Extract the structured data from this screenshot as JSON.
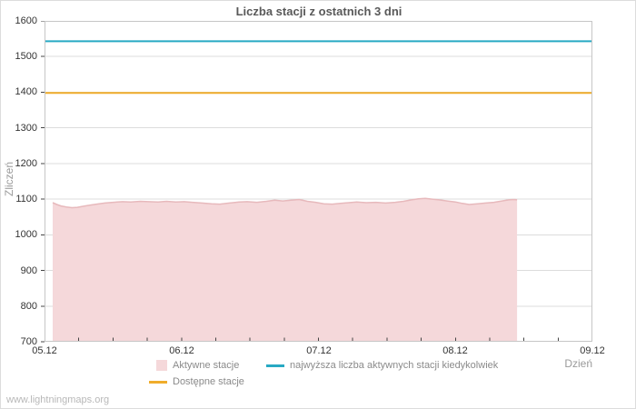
{
  "footer": {
    "watermark": "www.lightningmaps.org"
  },
  "chart_data": {
    "type": "area",
    "title": "Liczba stacji z ostatnich 3 dni",
    "xlabel": "Dzień",
    "ylabel": "Zliczeń",
    "ylim": [
      700,
      1600
    ],
    "y_tick_step": 100,
    "x_tick_labels": [
      "05.12",
      "06.12",
      "07.12",
      "08.12",
      "09.12"
    ],
    "x_domain": [
      0,
      4
    ],
    "minor_tick_interval": 0.25,
    "grid": "horizontal-only",
    "legend_position": "bottom",
    "colors": {
      "grid": "#dcdcdc",
      "frame": "#c6c6c6",
      "tick": "#444444",
      "area_fill": "#f5d8da",
      "area_edge": "#e7b9bc",
      "highest_line": "#27a9c3",
      "available_line": "#f0ad2b"
    },
    "series": [
      {
        "name": "Aktywne stacje",
        "type": "area",
        "fill": "#f5d8da",
        "edge": "#e7b9bc",
        "points": [
          [
            0.06,
            1090
          ],
          [
            0.09,
            1085
          ],
          [
            0.12,
            1081
          ],
          [
            0.16,
            1078
          ],
          [
            0.2,
            1076
          ],
          [
            0.24,
            1077
          ],
          [
            0.28,
            1080
          ],
          [
            0.33,
            1083
          ],
          [
            0.38,
            1086
          ],
          [
            0.44,
            1089
          ],
          [
            0.5,
            1091
          ],
          [
            0.57,
            1093
          ],
          [
            0.63,
            1092
          ],
          [
            0.7,
            1094
          ],
          [
            0.76,
            1093
          ],
          [
            0.83,
            1092
          ],
          [
            0.89,
            1094
          ],
          [
            0.96,
            1092
          ],
          [
            1.02,
            1093
          ],
          [
            1.08,
            1091
          ],
          [
            1.15,
            1089
          ],
          [
            1.22,
            1087
          ],
          [
            1.28,
            1086
          ],
          [
            1.35,
            1089
          ],
          [
            1.42,
            1092
          ],
          [
            1.48,
            1093
          ],
          [
            1.55,
            1091
          ],
          [
            1.62,
            1094
          ],
          [
            1.68,
            1097
          ],
          [
            1.74,
            1095
          ],
          [
            1.8,
            1097
          ],
          [
            1.86,
            1099
          ],
          [
            1.92,
            1094
          ],
          [
            1.98,
            1091
          ],
          [
            2.04,
            1087
          ],
          [
            2.1,
            1086
          ],
          [
            2.16,
            1088
          ],
          [
            2.22,
            1090
          ],
          [
            2.28,
            1092
          ],
          [
            2.35,
            1090
          ],
          [
            2.42,
            1091
          ],
          [
            2.49,
            1089
          ],
          [
            2.56,
            1091
          ],
          [
            2.62,
            1094
          ],
          [
            2.68,
            1098
          ],
          [
            2.73,
            1101
          ],
          [
            2.78,
            1102
          ],
          [
            2.83,
            1100
          ],
          [
            2.88,
            1098
          ],
          [
            2.94,
            1095
          ],
          [
            3.0,
            1092
          ],
          [
            3.05,
            1088
          ],
          [
            3.1,
            1085
          ],
          [
            3.16,
            1087
          ],
          [
            3.22,
            1089
          ],
          [
            3.28,
            1091
          ],
          [
            3.34,
            1095
          ],
          [
            3.39,
            1098
          ],
          [
            3.43,
            1099
          ],
          [
            3.45,
            1098
          ]
        ]
      },
      {
        "name": "najwyższa liczba aktywnych stacji kiedykolwiek",
        "type": "hline",
        "value": 1543,
        "color": "#27a9c3"
      },
      {
        "name": "Dostępne stacje",
        "type": "hline",
        "value": 1398,
        "color": "#f0ad2b"
      }
    ]
  }
}
